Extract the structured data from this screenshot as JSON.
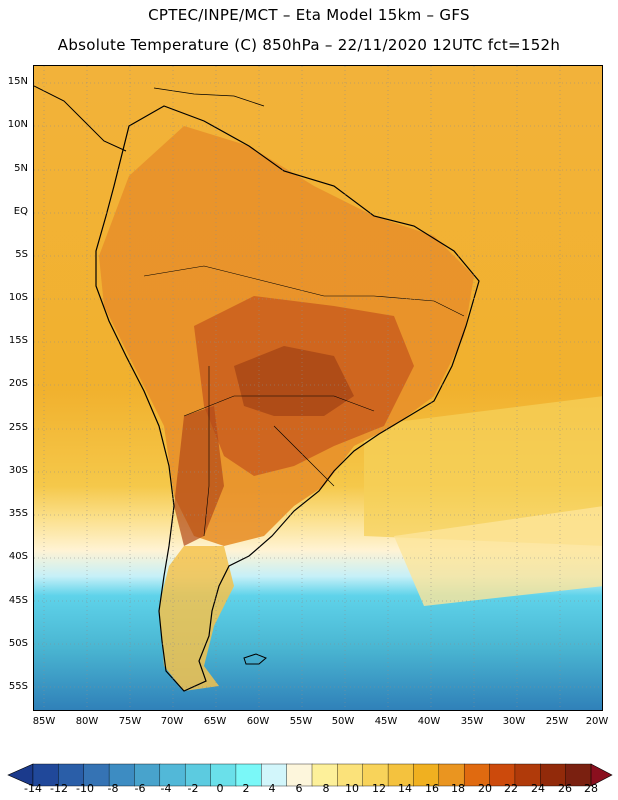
{
  "header": {
    "title_line1": "CPTEC/INPE/MCT –  Eta Model 15km – GFS",
    "title_line2": "Absolute Temperature (C) 850hPa – 22/11/2020 12UTC fct=152h"
  },
  "map": {
    "lat_labels": [
      "15N",
      "10N",
      "5N",
      "EQ",
      "5S",
      "10S",
      "15S",
      "20S",
      "25S",
      "30S",
      "35S",
      "40S",
      "45S",
      "50S",
      "55S"
    ],
    "lon_labels": [
      "85W",
      "80W",
      "75W",
      "70W",
      "65W",
      "60W",
      "55W",
      "50W",
      "45W",
      "40W",
      "35W",
      "30W",
      "25W",
      "20W"
    ]
  },
  "colorbar": {
    "labels": [
      "-14",
      "-12",
      "-10",
      "-8",
      "-6",
      "-4",
      "-2",
      "0",
      "2",
      "4",
      "6",
      "8",
      "10",
      "12",
      "14",
      "16",
      "18",
      "20",
      "22",
      "24",
      "26",
      "28"
    ],
    "colors": [
      "#1b3a8c",
      "#20489a",
      "#2a5ea8",
      "#3573b4",
      "#3d8cc2",
      "#48a3cc",
      "#52b8d8",
      "#5ccbe0",
      "#6ae0ea",
      "#7af8f8",
      "#d2f6fb",
      "#fdf6dc",
      "#fdf09a",
      "#fbe27a",
      "#f8d35a",
      "#f4c23e",
      "#f0b020",
      "#ea9520",
      "#e06a10",
      "#cc4a0c",
      "#b03a0a",
      "#922a0a",
      "#7a2010",
      "#8a0f1e"
    ]
  }
}
